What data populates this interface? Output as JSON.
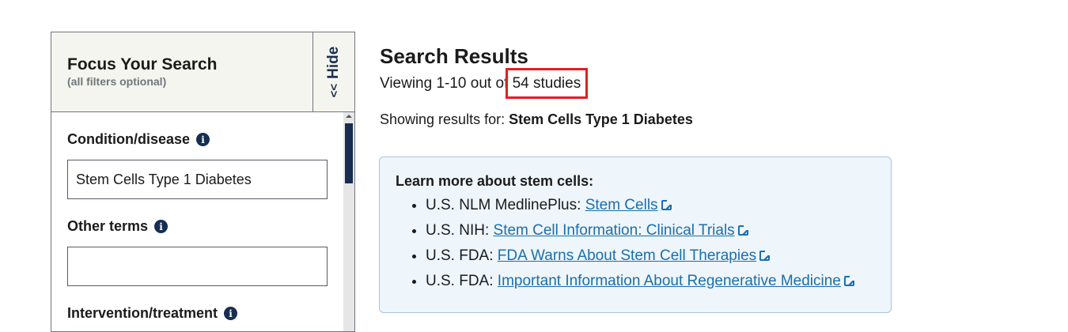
{
  "sidebar": {
    "title": "Focus Your Search",
    "subtitle": "(all filters optional)",
    "hide_label": "Hide",
    "hide_chevron": "<<",
    "fields": [
      {
        "label": "Condition/disease",
        "value": "Stem Cells Type 1 Diabetes"
      },
      {
        "label": "Other terms",
        "value": ""
      },
      {
        "label": "Intervention/treatment"
      }
    ]
  },
  "main": {
    "title": "Search Results",
    "count_prefix": "Viewing 1-10 out of ",
    "count_highlight": "54 studies",
    "showing_label": "Showing results for: ",
    "showing_query": "Stem Cells Type 1 Diabetes"
  },
  "learn": {
    "title": "Learn more about stem cells:",
    "items": [
      {
        "source": "U.S. NLM MedlinePlus: ",
        "link": "Stem Cells"
      },
      {
        "source": "U.S. NIH: ",
        "link": "Stem Cell Information: Clinical Trials"
      },
      {
        "source": "U.S. FDA: ",
        "link": "FDA Warns About Stem Cell Therapies"
      },
      {
        "source": "U.S. FDA: ",
        "link": "Important Information About Regenerative Medicine"
      }
    ]
  },
  "colors": {
    "link": "#1a6fae",
    "highlight": "#e02020",
    "navy": "#162e51"
  }
}
